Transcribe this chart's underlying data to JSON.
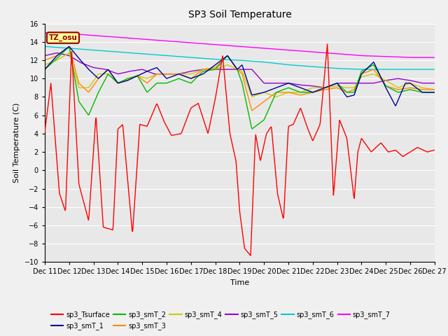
{
  "title": "SP3 Soil Temperature",
  "ylabel": "Soil Temperature (C)",
  "xlabel": "Time",
  "ylim": [
    -10,
    16
  ],
  "yticks": [
    -10,
    -8,
    -6,
    -4,
    -2,
    0,
    2,
    4,
    6,
    8,
    10,
    12,
    14,
    16
  ],
  "xtick_labels": [
    "Dec 11",
    "Dec 12",
    "Dec 13",
    "Dec 14",
    "Dec 15",
    "Dec 16",
    "Dec 17",
    "Dec 18",
    "Dec 19",
    "Dec 20",
    "Dec 21",
    "Dec 22",
    "Dec 23",
    "Dec 24",
    "Dec 25",
    "Dec 26",
    "Dec 27"
  ],
  "background_color": "#f0f0f0",
  "plot_bg_color": "#e8e8e8",
  "legend_colors": [
    "#ff0000",
    "#000099",
    "#00bb00",
    "#ff8800",
    "#cccc00",
    "#9900cc",
    "#00cccc",
    "#ff00ff"
  ],
  "legend_entries": [
    "sp3_Tsurface",
    "sp3_smT_1",
    "sp3_smT_2",
    "sp3_smT_3",
    "sp3_smT_4",
    "sp3_smT_5",
    "sp3_smT_6",
    "sp3_smT_7"
  ],
  "tz_osu_bg": "#ffff99",
  "tz_osu_border": "#990000",
  "tz_osu_text": "#990000",
  "grid_color": "#ffffff",
  "title_fontsize": 10,
  "label_fontsize": 8,
  "tick_fontsize": 7
}
